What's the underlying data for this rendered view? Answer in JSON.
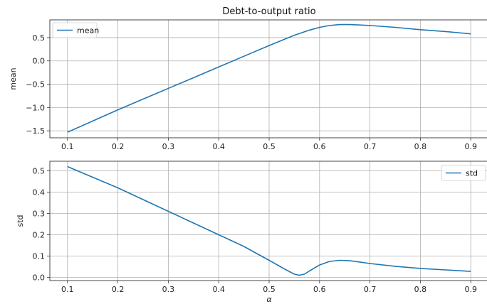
{
  "chart_data": [
    {
      "type": "line",
      "title": "Debt-to-output ratio",
      "xlabel": "",
      "ylabel": "mean",
      "xlim": [
        0.065,
        0.935
      ],
      "ylim": [
        -1.65,
        0.88
      ],
      "xticks": [
        0.1,
        0.2,
        0.3,
        0.4,
        0.5,
        0.6,
        0.7,
        0.8,
        0.9
      ],
      "yticks": [
        -1.5,
        -1.0,
        -0.5,
        0.0,
        0.5
      ],
      "grid": true,
      "legend": "top-left",
      "series": [
        {
          "name": "mean",
          "color": "#1f77b4",
          "x": [
            0.1,
            0.15,
            0.2,
            0.25,
            0.3,
            0.35,
            0.4,
            0.45,
            0.5,
            0.55,
            0.58,
            0.6,
            0.62,
            0.64,
            0.65,
            0.66,
            0.68,
            0.7,
            0.75,
            0.8,
            0.85,
            0.9
          ],
          "y": [
            -1.53,
            -1.29,
            -1.05,
            -0.82,
            -0.59,
            -0.36,
            -0.13,
            0.1,
            0.33,
            0.55,
            0.66,
            0.72,
            0.76,
            0.78,
            0.78,
            0.78,
            0.77,
            0.76,
            0.72,
            0.67,
            0.63,
            0.58
          ]
        }
      ]
    },
    {
      "type": "line",
      "title": "",
      "xlabel": "α",
      "ylabel": "std",
      "xlim": [
        0.065,
        0.935
      ],
      "ylim": [
        -0.015,
        0.545
      ],
      "xticks": [
        0.1,
        0.2,
        0.3,
        0.4,
        0.5,
        0.6,
        0.7,
        0.8,
        0.9
      ],
      "yticks": [
        0.0,
        0.1,
        0.2,
        0.3,
        0.4,
        0.5
      ],
      "grid": true,
      "legend": "top-right",
      "series": [
        {
          "name": "std",
          "color": "#1f77b4",
          "x": [
            0.1,
            0.15,
            0.2,
            0.25,
            0.3,
            0.35,
            0.4,
            0.45,
            0.5,
            0.53,
            0.55,
            0.56,
            0.57,
            0.58,
            0.6,
            0.62,
            0.64,
            0.66,
            0.68,
            0.7,
            0.75,
            0.8,
            0.85,
            0.9
          ],
          "y": [
            0.52,
            0.47,
            0.42,
            0.365,
            0.31,
            0.255,
            0.2,
            0.145,
            0.08,
            0.04,
            0.015,
            0.01,
            0.015,
            0.03,
            0.058,
            0.075,
            0.08,
            0.078,
            0.072,
            0.065,
            0.052,
            0.042,
            0.035,
            0.028
          ]
        }
      ]
    }
  ]
}
